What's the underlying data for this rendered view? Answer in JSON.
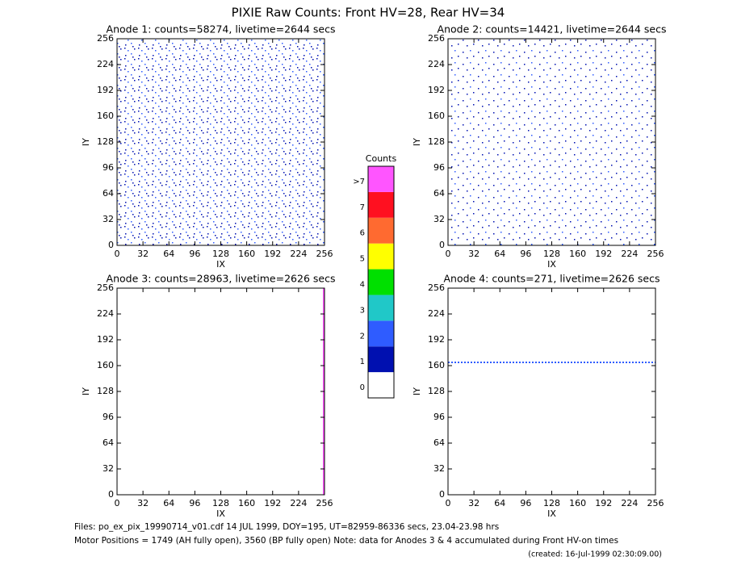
{
  "title": "PIXIE Raw Counts:  Front HV=28, Rear HV=34",
  "chart_data": [
    {
      "type": "heatmap",
      "title": "Anode 1: counts=58274, livetime=2644 secs",
      "xlabel": "IX",
      "ylabel": "IY",
      "xlim": [
        0,
        256
      ],
      "ylim": [
        0,
        256
      ],
      "xticks": [
        0,
        32,
        64,
        96,
        128,
        160,
        192,
        224,
        256
      ],
      "yticks": [
        0,
        32,
        64,
        96,
        128,
        160,
        192,
        224,
        256
      ]
    },
    {
      "type": "heatmap",
      "title": "Anode 2: counts=14421, livetime=2644 secs",
      "xlabel": "IX",
      "ylabel": "IY",
      "xlim": [
        0,
        256
      ],
      "ylim": [
        0,
        256
      ],
      "xticks": [
        0,
        32,
        64,
        96,
        128,
        160,
        192,
        224,
        256
      ],
      "yticks": [
        0,
        32,
        64,
        96,
        128,
        160,
        192,
        224,
        256
      ]
    },
    {
      "type": "heatmap",
      "title": "Anode 3: counts=28963, livetime=2626 secs",
      "xlabel": "IX",
      "ylabel": "IY",
      "xlim": [
        0,
        256
      ],
      "ylim": [
        0,
        256
      ],
      "xticks": [
        0,
        32,
        64,
        96,
        128,
        160,
        192,
        224,
        256
      ],
      "yticks": [
        0,
        32,
        64,
        96,
        128,
        160,
        192,
        224,
        256
      ]
    },
    {
      "type": "heatmap",
      "title": "Anode 4: counts=271, livetime=2626 secs",
      "xlabel": "IX",
      "ylabel": "IY",
      "xlim": [
        0,
        256
      ],
      "ylim": [
        0,
        256
      ],
      "xticks": [
        0,
        32,
        64,
        96,
        128,
        160,
        192,
        224,
        256
      ],
      "yticks": [
        0,
        32,
        64,
        96,
        128,
        160,
        192,
        224,
        256
      ]
    }
  ],
  "colorbar": {
    "title": "Counts",
    "labels": [
      "0",
      "1",
      "2",
      "3",
      "4",
      "5",
      "6",
      "7",
      ">7"
    ],
    "colors": [
      "#ffffff",
      "#0010b0",
      "#2f5cff",
      "#20c8c8",
      "#00e000",
      "#ffff00",
      "#ff6a30",
      "#ff1020",
      "#ff55ff"
    ]
  },
  "footer": {
    "files": "Files: po_ex_pix_19990714_v01.cdf    14 JUL 1999, DOY=195, UT=82959-86336 secs, 23.04-23.98 hrs",
    "motor": "Motor Positions = 1749 (AH fully open), 3560 (BP fully open)    Note: data for Anodes 3 & 4 accumulated during Front HV-on times",
    "created": "(created: 16-Jul-1999 02:30:09.00)"
  }
}
